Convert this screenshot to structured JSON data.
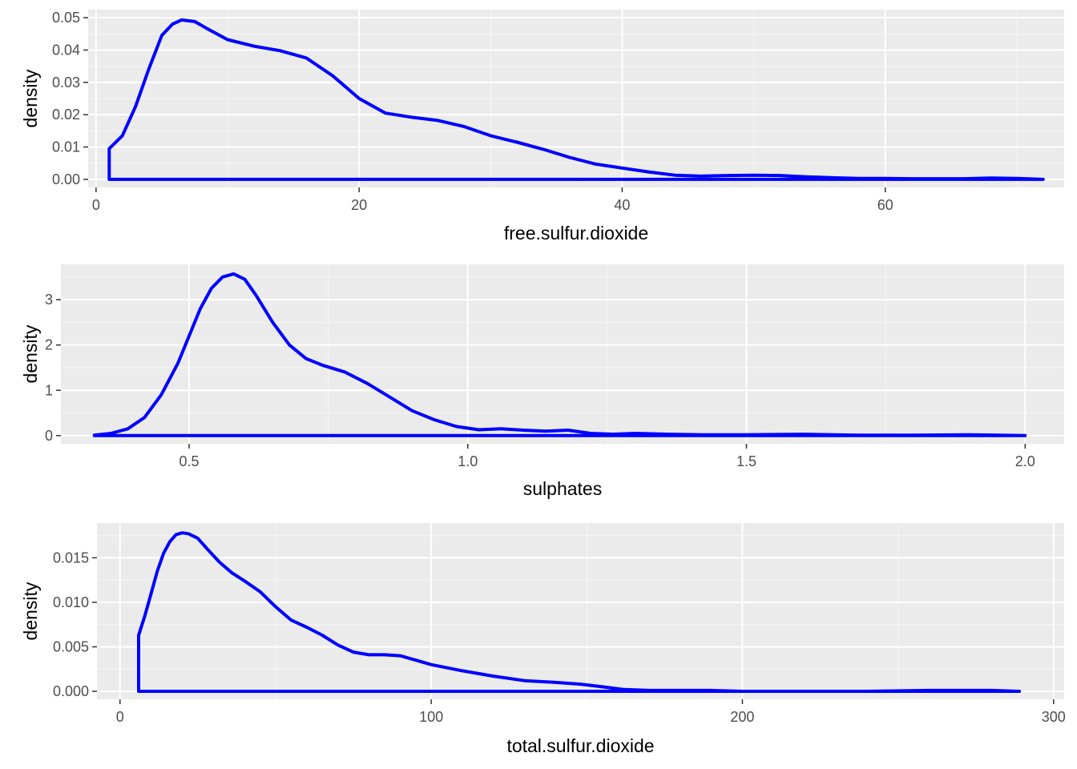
{
  "chart_data": [
    {
      "type": "area",
      "xlabel": "free.sulfur.dioxide",
      "ylabel": "density",
      "xlim": [
        -0.6,
        73.6
      ],
      "ylim": [
        -0.0025,
        0.0525
      ],
      "x_ticks": [
        0,
        20,
        40,
        60
      ],
      "x_tick_labels": [
        "0",
        "20",
        "40",
        "60"
      ],
      "y_ticks": [
        0,
        0.01,
        0.02,
        0.03,
        0.04,
        0.05
      ],
      "y_tick_labels": [
        "0.00",
        "0.01",
        "0.02",
        "0.03",
        "0.04",
        "0.05"
      ],
      "grid": true,
      "series": [
        {
          "x": [
            1,
            1,
            2,
            3,
            4,
            5,
            5.8,
            6.5,
            7.5,
            8.5,
            10,
            12,
            14,
            16,
            18,
            20,
            22,
            24,
            26,
            28,
            30,
            32,
            34,
            36,
            38,
            40,
            42,
            44,
            46,
            48,
            50,
            52,
            54,
            56,
            58,
            60,
            62,
            64,
            66,
            68,
            70,
            72
          ],
          "y": [
            0,
            0.0095,
            0.0135,
            0.0225,
            0.034,
            0.0445,
            0.048,
            0.0493,
            0.0488,
            0.0465,
            0.0432,
            0.0412,
            0.0398,
            0.0375,
            0.032,
            0.025,
            0.0205,
            0.0192,
            0.0182,
            0.0163,
            0.0135,
            0.0115,
            0.0093,
            0.0068,
            0.0047,
            0.0035,
            0.0023,
            0.0013,
            0.001,
            0.0012,
            0.0013,
            0.0012,
            0.0008,
            0.0005,
            0.0003,
            0.0003,
            0.0002,
            0.0002,
            0.0002,
            0.0004,
            0.0003,
            0
          ]
        }
      ]
    },
    {
      "type": "area",
      "xlabel": "sulphates",
      "ylabel": "density",
      "xlim": [
        0.27,
        2.07
      ],
      "ylim": [
        -0.18,
        3.78
      ],
      "x_ticks": [
        0.5,
        1.0,
        1.5,
        2.0
      ],
      "x_tick_labels": [
        "0.5",
        "1.0",
        "1.5",
        "2.0"
      ],
      "y_ticks": [
        0,
        1,
        2,
        3
      ],
      "y_tick_labels": [
        "0",
        "1",
        "2",
        "3"
      ],
      "grid": true,
      "series": [
        {
          "x": [
            0.33,
            0.36,
            0.39,
            0.42,
            0.45,
            0.48,
            0.5,
            0.52,
            0.54,
            0.56,
            0.58,
            0.6,
            0.62,
            0.65,
            0.68,
            0.71,
            0.74,
            0.78,
            0.82,
            0.86,
            0.9,
            0.94,
            0.98,
            1.02,
            1.06,
            1.1,
            1.14,
            1.18,
            1.22,
            1.26,
            1.3,
            1.36,
            1.42,
            1.5,
            1.6,
            1.7,
            1.8,
            1.9,
            2.0
          ],
          "y": [
            0.01,
            0.05,
            0.15,
            0.4,
            0.9,
            1.6,
            2.2,
            2.8,
            3.25,
            3.5,
            3.57,
            3.45,
            3.1,
            2.5,
            2.0,
            1.7,
            1.55,
            1.4,
            1.15,
            0.85,
            0.55,
            0.35,
            0.2,
            0.13,
            0.15,
            0.12,
            0.1,
            0.12,
            0.05,
            0.03,
            0.05,
            0.03,
            0.02,
            0.02,
            0.03,
            0.01,
            0.01,
            0.02,
            0
          ]
        }
      ]
    },
    {
      "type": "area",
      "xlabel": "total.sulfur.dioxide",
      "ylabel": "density",
      "xlim": [
        -7.4,
        303.4
      ],
      "ylim": [
        -0.0009,
        0.0189
      ],
      "x_ticks": [
        0,
        100,
        200,
        300
      ],
      "x_tick_labels": [
        "0",
        "100",
        "200",
        "300"
      ],
      "y_ticks": [
        0,
        0.005,
        0.01,
        0.015
      ],
      "y_tick_labels": [
        "0.000",
        "0.005",
        "0.010",
        "0.015"
      ],
      "grid": true,
      "series": [
        {
          "x": [
            6,
            6,
            8,
            10,
            12,
            14,
            16,
            18,
            20,
            22,
            25,
            28,
            32,
            36,
            40,
            45,
            50,
            55,
            60,
            65,
            70,
            75,
            80,
            85,
            90,
            95,
            100,
            110,
            120,
            130,
            140,
            148,
            155,
            162,
            170,
            180,
            190,
            200,
            220,
            240,
            260,
            280,
            289
          ],
          "y": [
            0,
            0.0063,
            0.0085,
            0.011,
            0.0135,
            0.0155,
            0.0168,
            0.0176,
            0.0178,
            0.0177,
            0.0172,
            0.016,
            0.0145,
            0.0133,
            0.0124,
            0.0112,
            0.0095,
            0.008,
            0.0072,
            0.0063,
            0.0052,
            0.0044,
            0.0041,
            0.0041,
            0.004,
            0.0035,
            0.003,
            0.0023,
            0.0017,
            0.0012,
            0.001,
            0.0008,
            0.0005,
            0.0002,
            0.0001,
            0.0001,
            0.0001,
            0,
            0,
            0,
            0.0001,
            0.0001,
            0
          ]
        }
      ]
    }
  ],
  "colors": {
    "line": "#0000ff",
    "panel": "#ebebeb",
    "grid_major": "#ffffff",
    "grid_minor": "#f5f5f5",
    "tick": "#333333"
  }
}
